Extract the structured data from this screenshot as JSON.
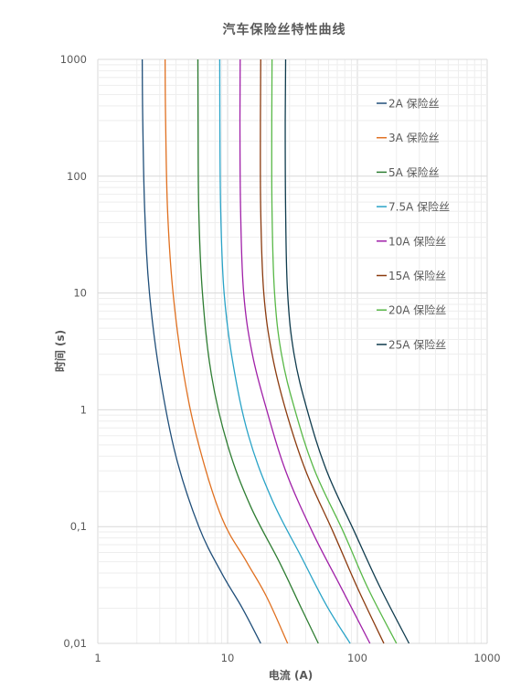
{
  "chart_data": {
    "type": "line",
    "title": "汽车保险丝特性曲线",
    "xlabel": "电流 (A)",
    "ylabel": "时间 (s)",
    "x_scale": "log",
    "y_scale": "log",
    "xlim": [
      1,
      1000
    ],
    "ylim": [
      0.01,
      1000
    ],
    "x_ticks": [
      "1",
      "10",
      "100",
      "1000"
    ],
    "y_ticks": [
      "0,01",
      "0,1",
      "1",
      "10",
      "100",
      "1000"
    ],
    "grid": true,
    "legend_position": "right",
    "series": [
      {
        "name": "2A 保险丝",
        "color": "#1f4e79",
        "points": [
          [
            2.2,
            1000
          ],
          [
            2.22,
            300
          ],
          [
            2.3,
            50
          ],
          [
            2.5,
            10
          ],
          [
            3.0,
            2
          ],
          [
            4.0,
            0.4
          ],
          [
            6.0,
            0.1
          ],
          [
            9.0,
            0.04
          ],
          [
            13.0,
            0.02
          ],
          [
            18.0,
            0.01
          ]
        ]
      },
      {
        "name": "3A 保险丝",
        "color": "#e07020",
        "points": [
          [
            3.3,
            1000
          ],
          [
            3.33,
            300
          ],
          [
            3.45,
            50
          ],
          [
            3.8,
            10
          ],
          [
            4.6,
            2
          ],
          [
            6.0,
            0.5
          ],
          [
            9.0,
            0.12
          ],
          [
            14.0,
            0.05
          ],
          [
            20.0,
            0.025
          ],
          [
            29.0,
            0.01
          ]
        ]
      },
      {
        "name": "5A 保险丝",
        "color": "#2e7d32",
        "points": [
          [
            5.9,
            1000
          ],
          [
            5.92,
            300
          ],
          [
            6.0,
            50
          ],
          [
            6.4,
            10
          ],
          [
            7.5,
            2
          ],
          [
            10.0,
            0.5
          ],
          [
            15.0,
            0.15
          ],
          [
            25.0,
            0.05
          ],
          [
            37.0,
            0.02
          ],
          [
            50.0,
            0.01
          ]
        ]
      },
      {
        "name": "7.5A 保险丝",
        "color": "#29a3c7",
        "points": [
          [
            8.7,
            1000
          ],
          [
            8.72,
            300
          ],
          [
            8.85,
            50
          ],
          [
            9.4,
            10
          ],
          [
            11.0,
            2.5
          ],
          [
            14.5,
            0.6
          ],
          [
            22.0,
            0.17
          ],
          [
            37.0,
            0.055
          ],
          [
            58.0,
            0.021
          ],
          [
            88.0,
            0.01
          ]
        ]
      },
      {
        "name": "10A 保险丝",
        "color": "#a020a8",
        "points": [
          [
            12.5,
            1000
          ],
          [
            12.45,
            300
          ],
          [
            12.6,
            50
          ],
          [
            13.3,
            10
          ],
          [
            15.5,
            3
          ],
          [
            20.0,
            1
          ],
          [
            28.0,
            0.3
          ],
          [
            45.0,
            0.09
          ],
          [
            75.0,
            0.03
          ],
          [
            125.0,
            0.01
          ]
        ]
      },
      {
        "name": "15A 保险丝",
        "color": "#8b3a0e",
        "points": [
          [
            18.0,
            1000
          ],
          [
            17.9,
            300
          ],
          [
            18.0,
            50
          ],
          [
            19.0,
            10
          ],
          [
            22.0,
            3
          ],
          [
            28.0,
            1
          ],
          [
            40.0,
            0.3
          ],
          [
            65.0,
            0.09
          ],
          [
            100.0,
            0.03
          ],
          [
            160.0,
            0.01
          ]
        ]
      },
      {
        "name": "20A 保险丝",
        "color": "#58b847",
        "points": [
          [
            22.0,
            1000
          ],
          [
            21.9,
            300
          ],
          [
            22.0,
            50
          ],
          [
            23.0,
            10
          ],
          [
            26.0,
            3
          ],
          [
            33.0,
            1
          ],
          [
            47.0,
            0.3
          ],
          [
            78.0,
            0.09
          ],
          [
            120.0,
            0.03
          ],
          [
            200.0,
            0.01
          ]
        ]
      },
      {
        "name": "25A 保险丝",
        "color": "#0f3b4d",
        "points": [
          [
            28.0,
            1000
          ],
          [
            27.8,
            300
          ],
          [
            28.0,
            50
          ],
          [
            29.0,
            10
          ],
          [
            32.5,
            3
          ],
          [
            41.0,
            1
          ],
          [
            58.0,
            0.3
          ],
          [
            95.0,
            0.09
          ],
          [
            150.0,
            0.03
          ],
          [
            250.0,
            0.01
          ]
        ]
      }
    ]
  }
}
